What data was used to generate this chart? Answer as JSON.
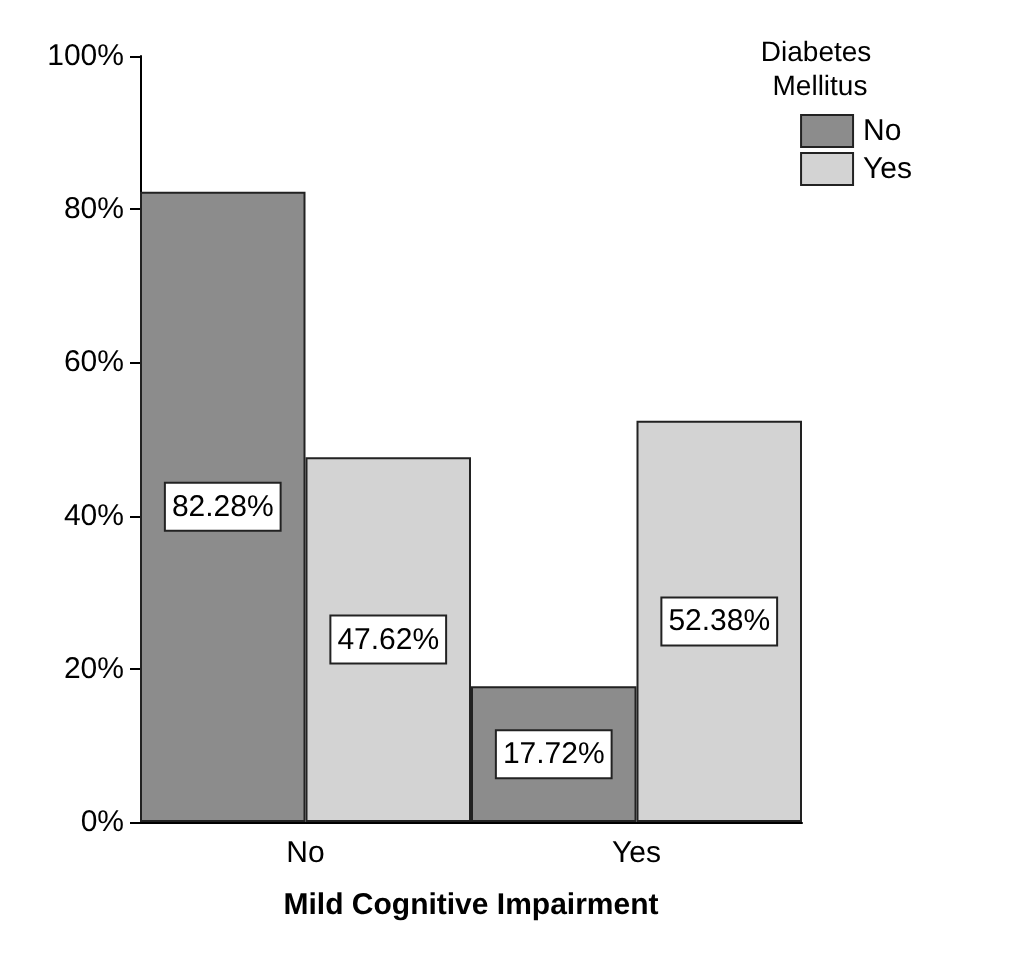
{
  "chart_data": {
    "type": "bar",
    "xlabel": "Mild Cognitive Impairment",
    "legend_title": "Diabetes Mellitus",
    "categories": [
      "No",
      "Yes"
    ],
    "series": [
      {
        "name": "No",
        "color": "#8c8c8c",
        "values": [
          82.28,
          17.72
        ],
        "value_labels": [
          "82.28%",
          "17.72%"
        ]
      },
      {
        "name": "Yes",
        "color": "#d3d3d3",
        "values": [
          47.62,
          52.38
        ],
        "value_labels": [
          "47.62%",
          "52.38%"
        ]
      }
    ],
    "ylim": [
      0,
      100
    ],
    "yticks": [
      {
        "value": 0,
        "label": "0%"
      },
      {
        "value": 20,
        "label": "20%"
      },
      {
        "value": 40,
        "label": "40%"
      },
      {
        "value": 60,
        "label": "60%"
      },
      {
        "value": 80,
        "label": "80%"
      },
      {
        "value": 100,
        "label": "100%"
      }
    ],
    "grid": false,
    "legend": "top right"
  }
}
